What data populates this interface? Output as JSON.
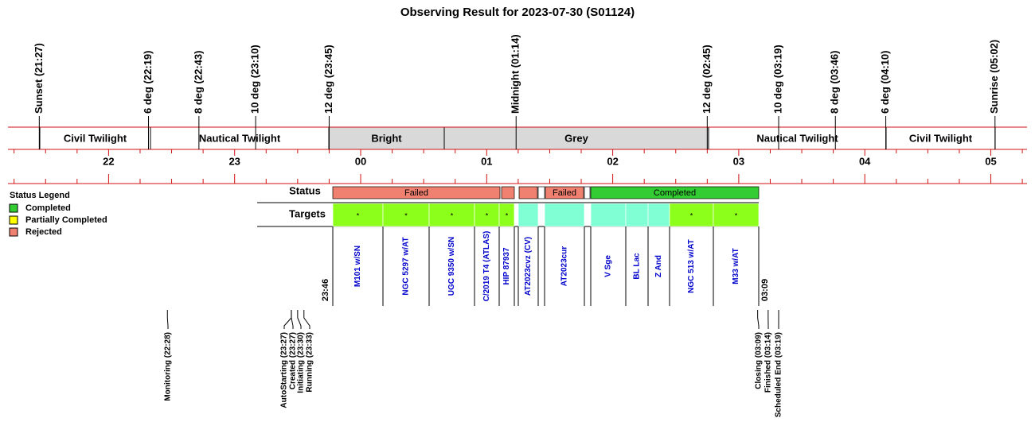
{
  "title": "Observing Result for 2023-07-30 (S01124)",
  "sky_events": [
    "Sunset (21:27)",
    "6 deg (22:19)",
    "8 deg (22:43)",
    "10 deg (23:10)",
    "12 deg (23:45)",
    "Midnight (01:14)",
    "12 deg (02:45)",
    "10 deg (03:19)",
    "8 deg (03:46)",
    "6 deg (04:10)",
    "Sunrise (05:02)"
  ],
  "sky_bands": [
    {
      "label": "Civil Twilight",
      "color": "#ffffff"
    },
    {
      "label": "Nautical Twilight",
      "color": "#ffffff"
    },
    {
      "label": "Bright",
      "color": "#d9d9d9"
    },
    {
      "label": "Grey",
      "color": "#d9d9d9"
    },
    {
      "label": "Nautical Twilight",
      "color": "#ffffff"
    },
    {
      "label": "Civil Twilight",
      "color": "#ffffff"
    }
  ],
  "hours": [
    "22",
    "23",
    "00",
    "01",
    "02",
    "03",
    "04",
    "05"
  ],
  "legend": {
    "title": "Status Legend",
    "items": [
      {
        "label": "Completed",
        "color": "#33cc33"
      },
      {
        "label": "Partially Completed",
        "color": "#ffff00"
      },
      {
        "label": "Rejected",
        "color": "#f08070"
      }
    ]
  },
  "row_labels": {
    "status": "Status",
    "targets": "Targets"
  },
  "status_blocks": [
    {
      "label": "Failed",
      "color": "#f08070"
    },
    {
      "color": "#f08070"
    },
    {
      "color": "#f08070"
    },
    {
      "color": "#ffffff"
    },
    {
      "label": "Failed",
      "color": "#f08070"
    },
    {
      "color": "#ffffff"
    },
    {
      "label": "Completed",
      "color": "#33cc33"
    }
  ],
  "targets": [
    {
      "name": "M101 w/SN",
      "color": "#8cff1a",
      "mark": "*"
    },
    {
      "name": "NGC 5297 w/AT",
      "color": "#8cff1a",
      "mark": "*"
    },
    {
      "name": "UGC 9350 w/SN",
      "color": "#8cff1a",
      "mark": "*"
    },
    {
      "name": "C/2019 T4 (ATLAS)",
      "color": "#8cff1a",
      "mark": "*"
    },
    {
      "name": "HIP 87937",
      "color": "#8cff1a",
      "mark": "*"
    },
    {
      "name": "AT2023cvz (CV)",
      "color": "#80ffd4"
    },
    {
      "name": "AT2023cur",
      "color": "#80ffd4"
    },
    {
      "name": "V Sge",
      "color": "#80ffd4"
    },
    {
      "name": "BL Lac",
      "color": "#80ffd4"
    },
    {
      "name": "Z And",
      "color": "#80ffd4"
    },
    {
      "name": "NGC 513 w/AT",
      "color": "#8cff1a",
      "mark": "*"
    },
    {
      "name": "M33 w/AT",
      "color": "#8cff1a",
      "mark": "*"
    }
  ],
  "start_time": "23:46",
  "end_time": "03:09",
  "process_events": [
    "Monitoring (22:28)",
    "AutoStarting (23:27)",
    "Created (23:27)",
    "Initiating (23:30)",
    "Running (23:33)",
    "Closing (03:09)",
    "Finished (03:14)",
    "Scheduled End (03:19)"
  ]
}
